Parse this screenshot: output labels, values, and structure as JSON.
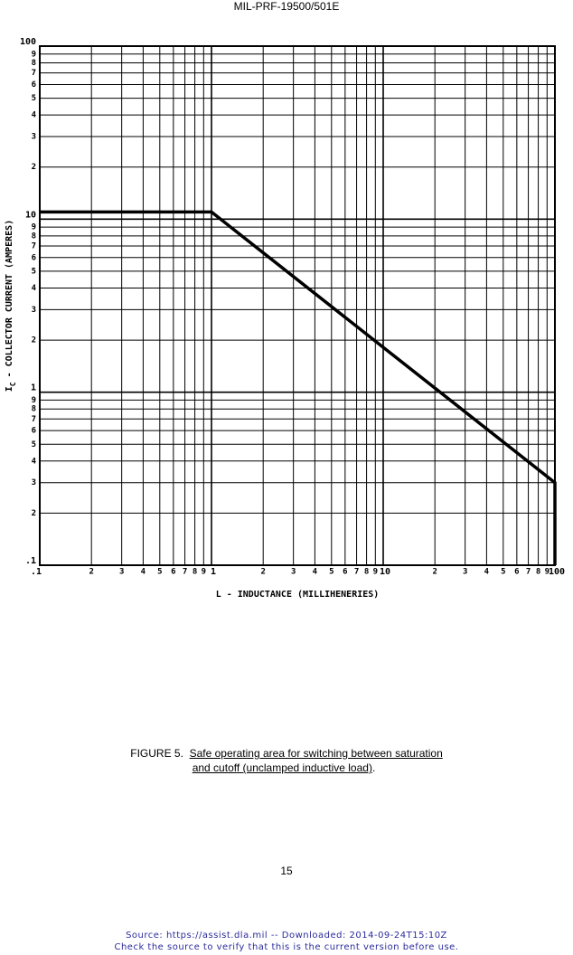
{
  "header": {
    "doc_id": "MIL-PRF-19500/501E"
  },
  "chart_data": {
    "type": "line",
    "log_x": true,
    "log_y": true,
    "grid": true,
    "xlabel": "L - INDUCTANCE (MILLIHENERIES)",
    "ylabel_symbol": "I",
    "ylabel_subscript": "C",
    "ylabel": "- COLLECTOR CURRENT (AMPERES)",
    "x": [
      0.1,
      1,
      100,
      100
    ],
    "series": [
      {
        "color": "#000000",
        "values": [
          11,
          11,
          0.3,
          0.1
        ]
      }
    ],
    "xlim": [
      0.1,
      100
    ],
    "ylim": [
      0.1,
      100
    ],
    "xticks": [
      {
        "value": 0.1,
        "label": ".1"
      },
      {
        "value": 0.2,
        "label": "2"
      },
      {
        "value": 0.3,
        "label": "3"
      },
      {
        "value": 0.4,
        "label": "4"
      },
      {
        "value": 0.5,
        "label": "5"
      },
      {
        "value": 0.6,
        "label": "6"
      },
      {
        "value": 0.7,
        "label": "7"
      },
      {
        "value": 0.8,
        "label": "8"
      },
      {
        "value": 0.9,
        "label": "9"
      },
      1,
      2,
      3,
      4,
      5,
      6,
      7,
      8,
      9,
      10,
      {
        "value": 20,
        "label": "2"
      },
      {
        "value": 30,
        "label": "3"
      },
      {
        "value": 40,
        "label": "4"
      },
      {
        "value": 50,
        "label": "5"
      },
      {
        "value": 60,
        "label": "6"
      },
      {
        "value": 70,
        "label": "7"
      },
      {
        "value": 80,
        "label": "8"
      },
      {
        "value": 90,
        "label": "9"
      },
      100
    ],
    "yticks": [
      {
        "value": 0.1,
        "label": ".1"
      },
      {
        "value": 0.2,
        "label": "2"
      },
      {
        "value": 0.3,
        "label": "3"
      },
      {
        "value": 0.4,
        "label": "4"
      },
      {
        "value": 0.5,
        "label": "5"
      },
      {
        "value": 0.6,
        "label": "6"
      },
      {
        "value": 0.7,
        "label": "7"
      },
      {
        "value": 0.8,
        "label": "8"
      },
      {
        "value": 0.9,
        "label": "9"
      },
      1,
      2,
      3,
      4,
      5,
      6,
      7,
      8,
      9,
      10,
      {
        "value": 20,
        "label": "2"
      },
      {
        "value": 30,
        "label": "3"
      },
      {
        "value": 40,
        "label": "4"
      },
      {
        "value": 50,
        "label": "5"
      },
      {
        "value": 60,
        "label": "6"
      },
      {
        "value": 70,
        "label": "7"
      },
      {
        "value": 80,
        "label": "8"
      },
      {
        "value": 90,
        "label": "9"
      },
      100
    ]
  },
  "caption": {
    "label": "FIGURE 5.",
    "lines": [
      "Safe operating area for switching between saturation",
      "and cutoff (unclamped inductive load)"
    ],
    "end": "."
  },
  "page_number": "15",
  "footer": {
    "lines": [
      "Source: https://assist.dla.mil -- Downloaded: 2014-09-24T15:10Z",
      "Check the source to verify that this is the current version before use."
    ]
  }
}
